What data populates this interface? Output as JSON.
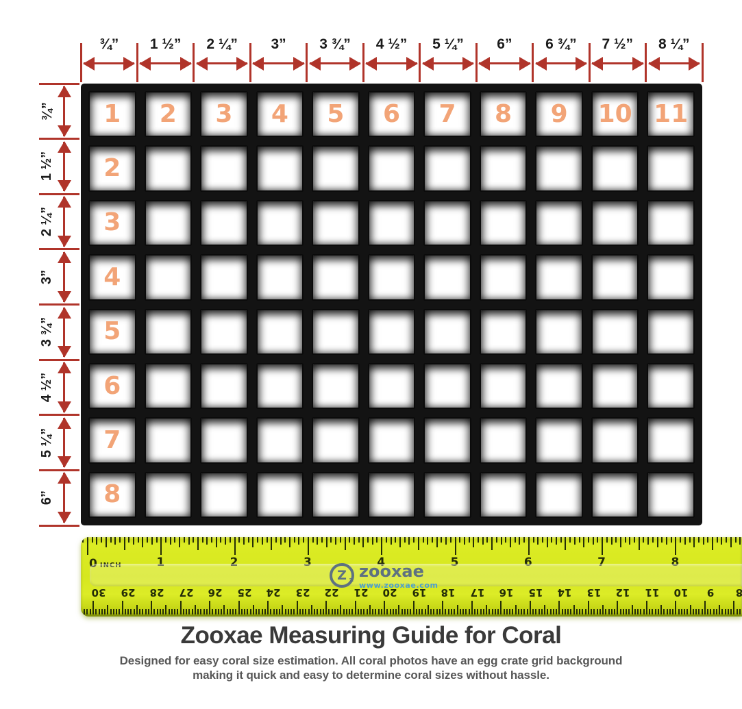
{
  "colors": {
    "accent_red": "#b0342a",
    "cell_number_orange": "#f2a477",
    "ruler_ink": "#242d08",
    "logo_slate": "#5e7181",
    "logo_url_blue": "#4b9fd0",
    "title_gray": "#3a3a3a",
    "subtitle_gray": "#575757"
  },
  "top_scale": {
    "labels": [
      "¾”",
      "1 ½”",
      "2 ¼”",
      "3”",
      "3 ¾”",
      "4 ½”",
      "5 ¼”",
      "6”",
      "6 ¾”",
      "7 ½”",
      "8 ¼”"
    ]
  },
  "left_scale": {
    "labels": [
      "¾”",
      "1 ½”",
      "2 ¼”",
      "3”",
      "3 ¾”",
      "4 ½”",
      "5 ¼”",
      "6”"
    ]
  },
  "grid": {
    "column_numbers": [
      "1",
      "2",
      "3",
      "4",
      "5",
      "6",
      "7",
      "8",
      "9",
      "10",
      "11"
    ],
    "row_numbers": [
      "1",
      "2",
      "3",
      "4",
      "5",
      "6",
      "7",
      "8"
    ]
  },
  "ruler": {
    "zero_label": "0",
    "zero_unit": "INCH",
    "inch_numbers": [
      "1",
      "2",
      "3",
      "4",
      "5",
      "6",
      "7",
      "8"
    ],
    "cm_numbers": [
      "30",
      "29",
      "28",
      "27",
      "26",
      "25",
      "24",
      "23",
      "22",
      "21",
      "20",
      "19",
      "18",
      "17",
      "16",
      "15",
      "14",
      "13",
      "12",
      "11",
      "10",
      "9",
      "8"
    ],
    "logo": {
      "glyph": "Z",
      "lines": "≡",
      "brand": "zooxae",
      "url": "www.zooxae.com"
    }
  },
  "footer": {
    "title": "Zooxae Measuring Guide for Coral",
    "subtitle_line1": "Designed for easy coral size estimation. All coral photos have an egg crate grid background",
    "subtitle_line2": "making it quick and easy to determine coral sizes without hassle."
  }
}
